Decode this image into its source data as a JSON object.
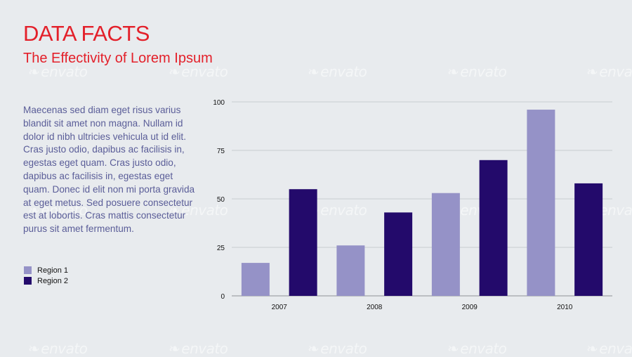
{
  "header": {
    "title": "DATA FACTS",
    "subtitle": "The Effectivity of Lorem Ipsum"
  },
  "body_text": "Maecenas sed diam eget risus varius blandit sit amet non magna. Nullam id dolor id nibh ultricies vehicula ut id elit. Cras justo odio, dapibus ac facilisis in, egestas eget quam. Cras justo odio, dapibus ac facilisis in, egestas eget quam. Donec id elit non mi porta gravida at eget metus. Sed posuere consectetur est at lobortis. Cras mattis consectetur purus sit amet fermentum.",
  "watermark": "envato",
  "colors": {
    "title": "#e3202a",
    "body_text": "#5a5d98",
    "region1": "#9592c7",
    "region2": "#230a6b",
    "grid": "#c9ccd0"
  },
  "legend": [
    {
      "label": "Region 1",
      "color": "#9592c7"
    },
    {
      "label": "Region 2",
      "color": "#230a6b"
    }
  ],
  "chart_data": {
    "type": "bar",
    "categories": [
      "2007",
      "2008",
      "2009",
      "2010"
    ],
    "series": [
      {
        "name": "Region 1",
        "values": [
          17,
          26,
          53,
          96
        ],
        "color": "#9592c7"
      },
      {
        "name": "Region 2",
        "values": [
          55,
          43,
          70,
          58
        ],
        "color": "#230a6b"
      }
    ],
    "yticks": [
      0,
      25,
      50,
      75,
      100
    ],
    "ylim": [
      0,
      100
    ],
    "grid": true,
    "legend_position": "left"
  }
}
